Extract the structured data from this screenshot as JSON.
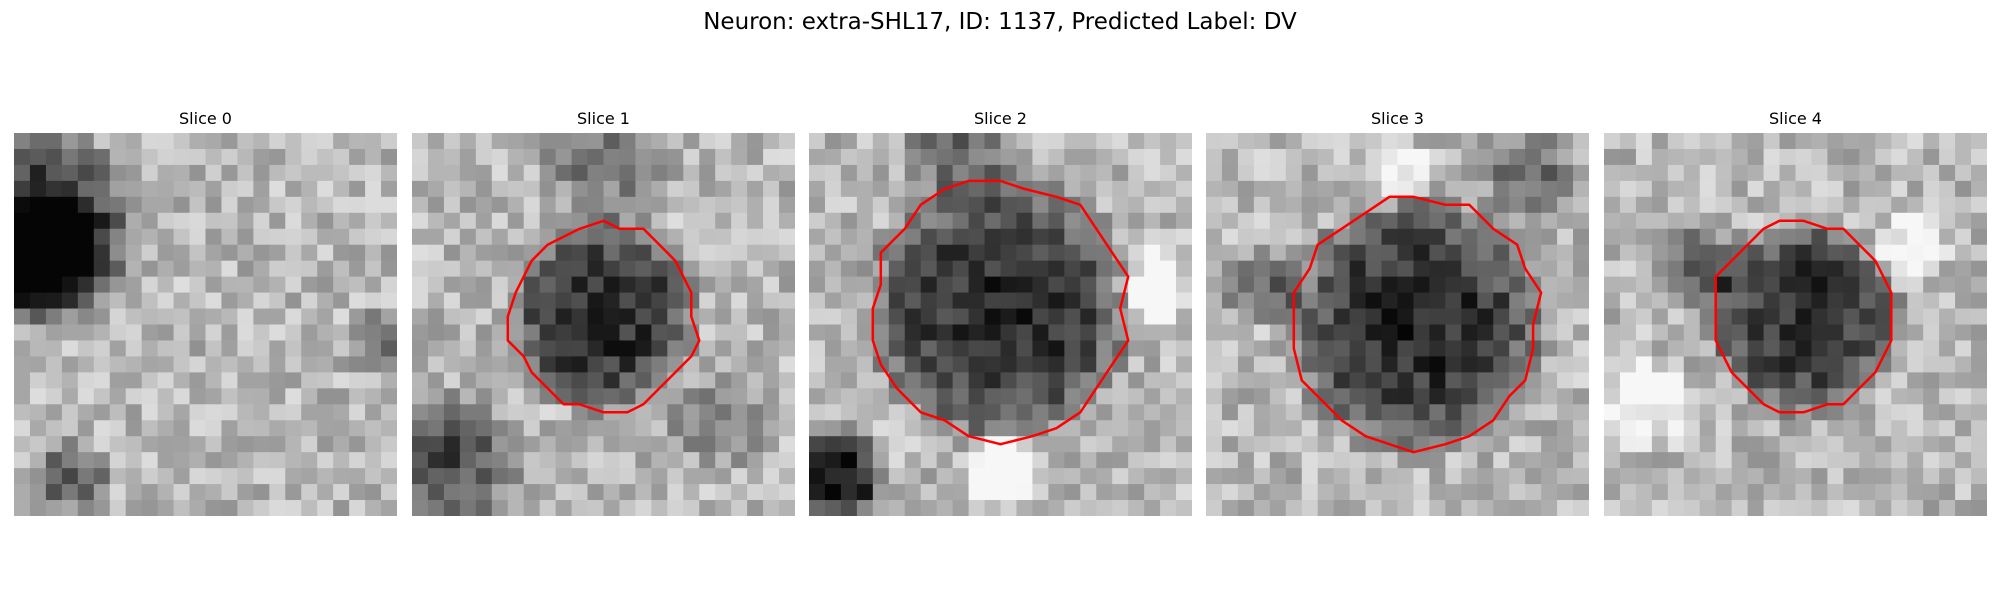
{
  "figure": {
    "title": "Neuron: extra-SHL17, ID: 1137, Predicted Label: DV"
  },
  "panels": [
    {
      "title": "Slice 0",
      "contour": false,
      "cell_center": [
        0.05,
        0.25
      ],
      "cell_radius": 0.25
    },
    {
      "title": "Slice 1",
      "contour": true,
      "cell_center": [
        0.5,
        0.48
      ],
      "cell_radius": 0.24
    },
    {
      "title": "Slice 2",
      "contour": true,
      "cell_center": [
        0.5,
        0.46
      ],
      "cell_radius": 0.33
    },
    {
      "title": "Slice 3",
      "contour": true,
      "cell_center": [
        0.55,
        0.5
      ],
      "cell_radius": 0.32
    },
    {
      "title": "Slice 4",
      "contour": true,
      "cell_center": [
        0.52,
        0.48
      ],
      "cell_radius": 0.24
    }
  ],
  "colors": {
    "contour": "#ff0000",
    "background": "#ffffff"
  }
}
